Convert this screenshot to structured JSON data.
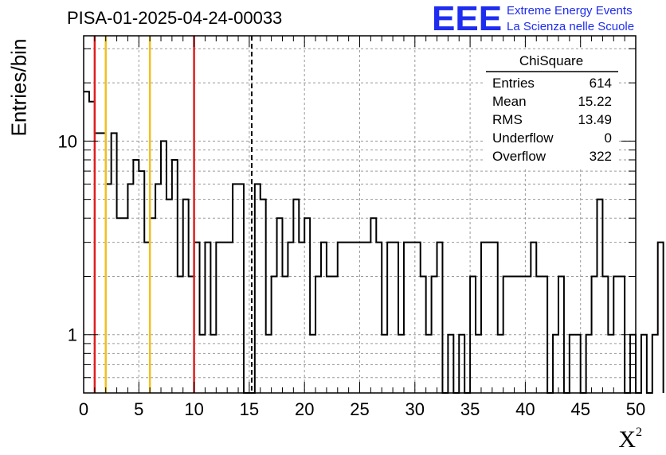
{
  "chart_data": {
    "type": "histogram-step",
    "title": "PISA-01-2025-04-24-00033",
    "xlabel_base": "X",
    "xlabel_sup": "2",
    "ylabel": "Entries/bin",
    "log_y": true,
    "grid": true,
    "xlim": [
      0,
      50
    ],
    "ylim": [
      0.5,
      35
    ],
    "bin_width": 0.5,
    "values": [
      18,
      16,
      11,
      11,
      6,
      11,
      4,
      4,
      6,
      8,
      7,
      3,
      4,
      6,
      10,
      5,
      8,
      2,
      5,
      2,
      3,
      1,
      3,
      1,
      3,
      3,
      3,
      6,
      6,
      0,
      0,
      6,
      5,
      1,
      2,
      4,
      2,
      3,
      5,
      3,
      4,
      1,
      2,
      3,
      2,
      2,
      3,
      3,
      3,
      3,
      3,
      3,
      4,
      3,
      1,
      3,
      3,
      1,
      3,
      3,
      3,
      2,
      1,
      2,
      3,
      0,
      1,
      0,
      1,
      0,
      2,
      1,
      3,
      3,
      3,
      1,
      2,
      2,
      2,
      2,
      2,
      3,
      2,
      2,
      0,
      1,
      2,
      0,
      1,
      1,
      0,
      1,
      2,
      5,
      2,
      1,
      2,
      2,
      0,
      1,
      0,
      1,
      0,
      1,
      3
    ],
    "x_ticks": [
      "0",
      "5",
      "10",
      "15",
      "20",
      "25",
      "30",
      "35",
      "40",
      "45",
      "50"
    ],
    "y_ticks": [
      "1",
      "10"
    ],
    "vlines": [
      {
        "x": 1,
        "color": "#dd1e1e",
        "style": "solid"
      },
      {
        "x": 2,
        "color": "#f0c020",
        "style": "solid"
      },
      {
        "x": 6,
        "color": "#f0c020",
        "style": "solid"
      },
      {
        "x": 10,
        "color": "#dd1e1e",
        "style": "solid"
      },
      {
        "x": 15.22,
        "color": "#000000",
        "style": "dashed"
      }
    ],
    "stats": {
      "name": "ChiSquare",
      "rows": [
        {
          "label": "Entries",
          "value": "614"
        },
        {
          "label": "Mean",
          "value": "15.22"
        },
        {
          "label": "RMS",
          "value": "13.49"
        },
        {
          "label": "Underflow",
          "value": "0"
        },
        {
          "label": "Overflow",
          "value": "322"
        }
      ]
    }
  },
  "logo": {
    "mark": "EEE",
    "line1": "Extreme Energy Events",
    "line2": "La Scienza nelle Scuole",
    "color": "#1e2cf0"
  }
}
